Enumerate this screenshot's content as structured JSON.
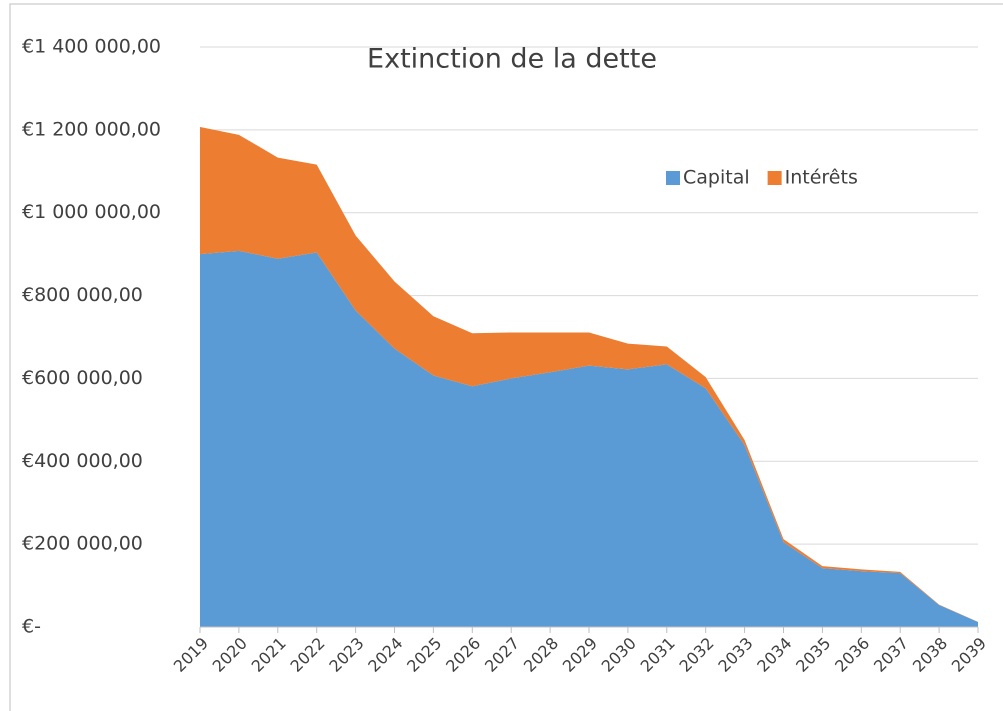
{
  "chart_data": {
    "type": "stacked_area",
    "title": "Extinction de la dette",
    "categories": [
      "2019",
      "2020",
      "2021",
      "2022",
      "2023",
      "2024",
      "2025",
      "2026",
      "2027",
      "2028",
      "2029",
      "2030",
      "2031",
      "2032",
      "2033",
      "2034",
      "2035",
      "2036",
      "2037",
      "2038",
      "2039"
    ],
    "series": [
      {
        "name": "Capital",
        "color": "#5b9bd5",
        "values": [
          900000,
          908000,
          889000,
          904000,
          764000,
          672000,
          607000,
          581000,
          600000,
          615000,
          631000,
          622000,
          634000,
          576000,
          439000,
          205000,
          142000,
          135000,
          130000,
          53000,
          12000
        ]
      },
      {
        "name": "Intérêts",
        "color": "#ed7d31",
        "values": [
          307000,
          280000,
          244000,
          212000,
          181000,
          162000,
          143000,
          128000,
          111000,
          96000,
          80000,
          62000,
          43000,
          27000,
          12000,
          7000,
          5000,
          4000,
          3000,
          1000,
          500
        ]
      }
    ],
    "ylim": [
      0,
      1400000
    ],
    "yticks": [
      {
        "value": 0,
        "label": "€-"
      },
      {
        "value": 200000,
        "label": "€200 000,00"
      },
      {
        "value": 400000,
        "label": "€400 000,00"
      },
      {
        "value": 600000,
        "label": "€600 000,00"
      },
      {
        "value": 800000,
        "label": "€800 000,00"
      },
      {
        "value": 1000000,
        "label": "€1 000 000,00"
      },
      {
        "value": 1200000,
        "label": "€1 200 000,00"
      },
      {
        "value": 1400000,
        "label": "€1 400 000,00"
      }
    ],
    "grid": true,
    "legend": "top-right"
  }
}
